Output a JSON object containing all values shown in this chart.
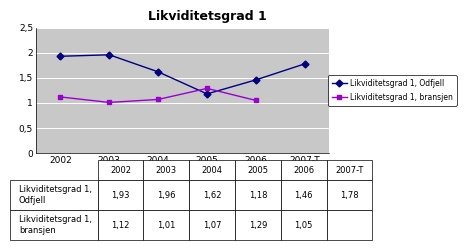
{
  "title": "Likviditetsgrad 1",
  "categories": [
    "2002",
    "2003",
    "2004",
    "2005",
    "2006",
    "2007-T"
  ],
  "odfjell_values": [
    1.93,
    1.96,
    1.62,
    1.18,
    1.46,
    1.78
  ],
  "bransjen_values": [
    1.12,
    1.01,
    1.07,
    1.29,
    1.05,
    null
  ],
  "odfjell_color": "#000080",
  "bransjen_color": "#9900CC",
  "ylim": [
    0,
    2.5
  ],
  "yticks": [
    0,
    0.5,
    1.0,
    1.5,
    2.0,
    2.5
  ],
  "ytick_labels": [
    "0",
    "0,5",
    "1",
    "1,5",
    "2",
    "2,5"
  ],
  "legend_odfjell": "Likviditetsgrad 1, Odfjell",
  "legend_bransjen": "Likviditetsgrad 1, bransjen",
  "table_row1_label": "Likviditetsgrad 1,\nOdfjell",
  "table_row2_label": "Likviditetsgrad 1,\nbransjen",
  "table_odfjell": [
    "1,93",
    "1,96",
    "1,62",
    "1,18",
    "1,46",
    "1,78"
  ],
  "table_bransjen": [
    "1,12",
    "1,01",
    "1,07",
    "1,29",
    "1,05",
    ""
  ],
  "plot_bg_color": "#C8C8C8",
  "fig_bg_color": "#FFFFFF",
  "outer_bg_color": "#FFFFFF"
}
